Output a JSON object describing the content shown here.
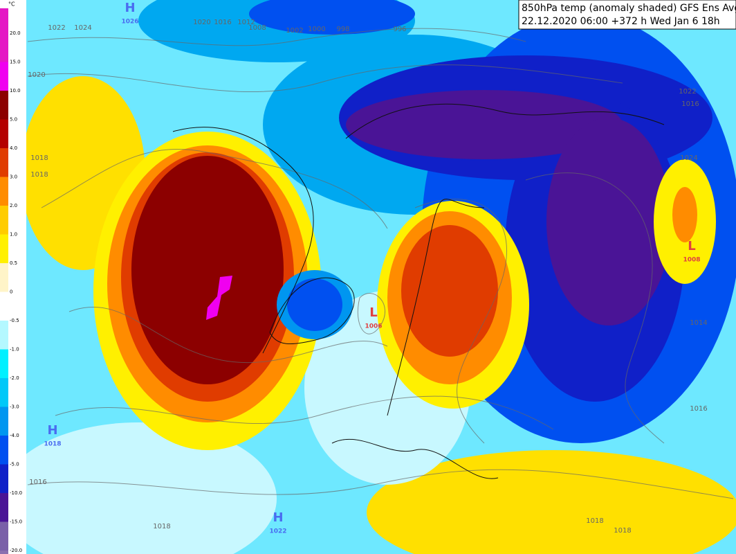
{
  "title": {
    "line1": "850hPa temp (anomaly shaded) GFS Ens Avg",
    "line2": "22.12.2020 06:00 +372 h Wed Jan 6 18h"
  },
  "legend": {
    "unit": "°C",
    "entries": [
      {
        "label": "20.0",
        "color": "#e418c4"
      },
      {
        "label": "15.0",
        "color": "#f000f0"
      },
      {
        "label": "10.0",
        "color": "#8c0000"
      },
      {
        "label": "5.0",
        "color": "#b40000"
      },
      {
        "label": "4.0",
        "color": "#e03c00"
      },
      {
        "label": "3.0",
        "color": "#ff8c00"
      },
      {
        "label": "2.0",
        "color": "#ffcc00"
      },
      {
        "label": "1.0",
        "color": "#fff000"
      },
      {
        "label": "0.5",
        "color": "#fff4c8"
      },
      {
        "label": "0",
        "color": "#ffffff"
      },
      {
        "label": "-0.5",
        "color": "#b4f8ff"
      },
      {
        "label": "-1.0",
        "color": "#00f0ff"
      },
      {
        "label": "-2.0",
        "color": "#00c8f8"
      },
      {
        "label": "-3.0",
        "color": "#0096f0"
      },
      {
        "label": "-4.0",
        "color": "#0050f0"
      },
      {
        "label": "-5.0",
        "color": "#1020c8"
      },
      {
        "label": "-10.0",
        "color": "#4a1496"
      },
      {
        "label": "-15.0",
        "color": "#7a60a8"
      },
      {
        "label": "-20.0",
        "color": "#8a70b0"
      }
    ]
  },
  "pressure_centers": [
    {
      "type": "H",
      "value": "1026"
    },
    {
      "type": "H",
      "value": "1018"
    },
    {
      "type": "H",
      "value": "1022"
    },
    {
      "type": "L",
      "value": "1006"
    },
    {
      "type": "L",
      "value": "1008"
    }
  ],
  "isobar_labels": [
    "1022",
    "1024",
    "1020",
    "1016",
    "1012",
    "1008",
    "1002",
    "1000",
    "998",
    "996",
    "1018",
    "1018",
    "1020",
    "1016",
    "1014",
    "1016",
    "1018",
    "1018",
    "1018",
    "1022",
    "1024",
    "1016"
  ]
}
